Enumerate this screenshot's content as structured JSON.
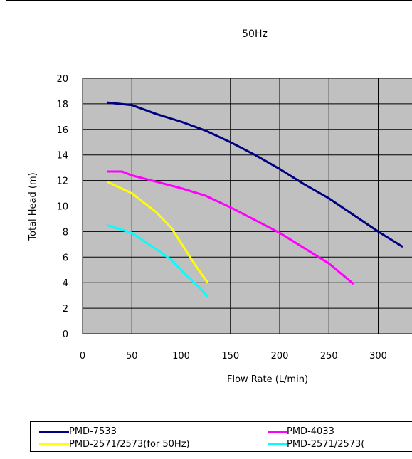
{
  "chart_data": {
    "type": "line",
    "title": "50Hz",
    "xlabel": "Flow Rate (L/min)",
    "ylabel": "Total Head (m)",
    "xlim": [
      0,
      330
    ],
    "ylim": [
      0,
      20
    ],
    "xticks": [
      0,
      50,
      100,
      150,
      200,
      250,
      300
    ],
    "yticks": [
      0,
      2,
      4,
      6,
      8,
      10,
      12,
      14,
      16,
      18,
      20
    ],
    "grid": true,
    "legend_position": "bottom",
    "series": [
      {
        "name": "PMD-7533",
        "color": "#000080",
        "x": [
          25,
          50,
          75,
          100,
          125,
          150,
          175,
          200,
          225,
          250,
          275,
          300,
          325
        ],
        "y": [
          18.1,
          17.9,
          17.2,
          16.6,
          15.9,
          15.0,
          14.0,
          12.9,
          11.7,
          10.6,
          9.3,
          8.0,
          6.8
        ]
      },
      {
        "name": "PMD-4033",
        "color": "#ff00ff",
        "x": [
          25,
          40,
          50,
          75,
          100,
          125,
          150,
          175,
          200,
          225,
          250,
          275
        ],
        "y": [
          12.7,
          12.7,
          12.4,
          11.9,
          11.4,
          10.8,
          9.9,
          8.9,
          7.9,
          6.7,
          5.5,
          3.9
        ]
      },
      {
        "name": "PMD-2571/2573(for 50Hz)",
        "color": "#ffff00",
        "x": [
          25,
          50,
          75,
          90,
          105,
          115,
          127
        ],
        "y": [
          11.9,
          11.0,
          9.5,
          8.3,
          6.5,
          5.3,
          4.0
        ]
      },
      {
        "name": "PMD-2571/2573(",
        "color": "#00ffff",
        "x": [
          25,
          50,
          75,
          90,
          105,
          115,
          127
        ],
        "y": [
          8.5,
          7.9,
          6.6,
          5.8,
          4.6,
          3.9,
          2.9
        ]
      }
    ]
  }
}
